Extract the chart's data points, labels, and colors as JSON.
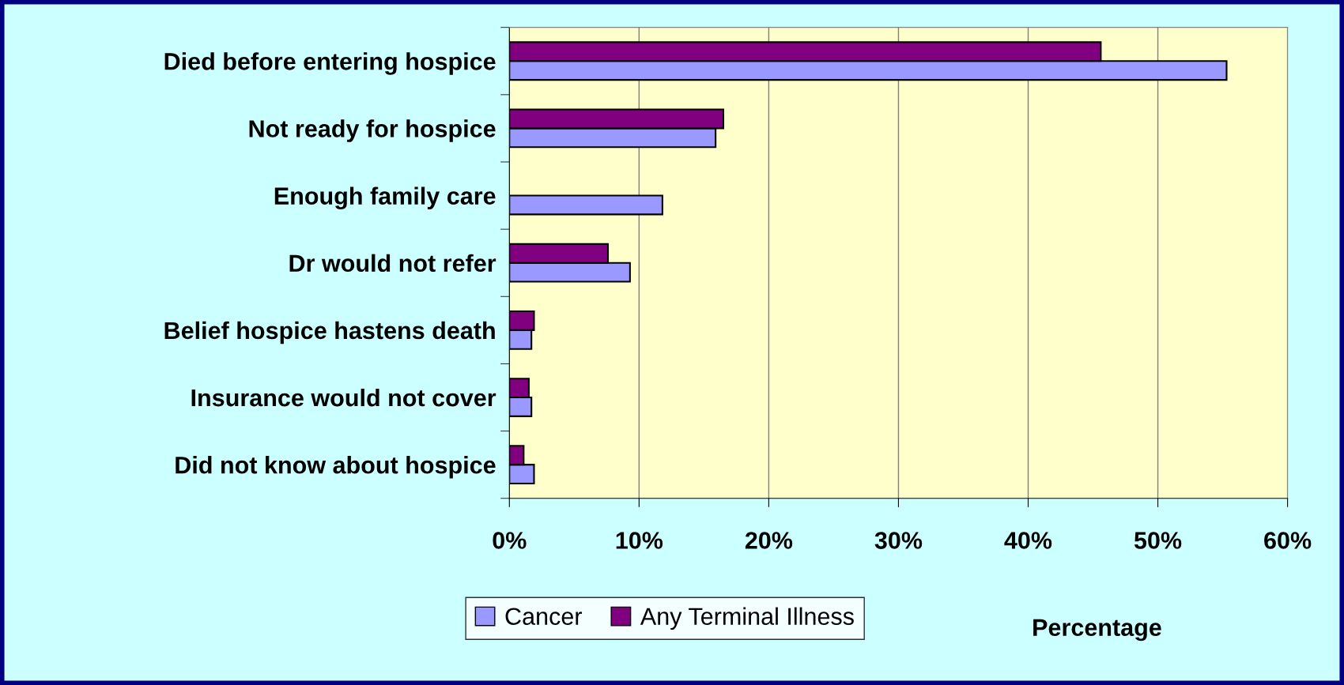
{
  "chart_data": {
    "type": "bar",
    "orientation": "horizontal",
    "xlabel": "Percentage",
    "categories": [
      "Died before entering hospice",
      "Not ready for hospice",
      "Enough family care",
      "Dr would not refer",
      "Belief hospice hastens death",
      "Insurance would not cover",
      "Did not know about hospice"
    ],
    "series": [
      {
        "name": "Cancer",
        "color": "#9999ff",
        "values": [
          55.3,
          15.9,
          11.8,
          9.3,
          1.7,
          1.7,
          1.9
        ]
      },
      {
        "name": "Any Terminal Illness",
        "color": "#800080",
        "values": [
          45.6,
          16.5,
          null,
          7.6,
          1.9,
          1.5,
          1.1
        ]
      }
    ],
    "xlim": [
      0,
      60
    ],
    "xticks": [
      {
        "value": 0,
        "label": "0%"
      },
      {
        "value": 10,
        "label": "10%"
      },
      {
        "value": 20,
        "label": "20%"
      },
      {
        "value": 30,
        "label": "30%"
      },
      {
        "value": 40,
        "label": "40%"
      },
      {
        "value": 50,
        "label": "50%"
      },
      {
        "value": 60,
        "label": "60%"
      }
    ],
    "grid": "x",
    "legend": "bottom"
  }
}
